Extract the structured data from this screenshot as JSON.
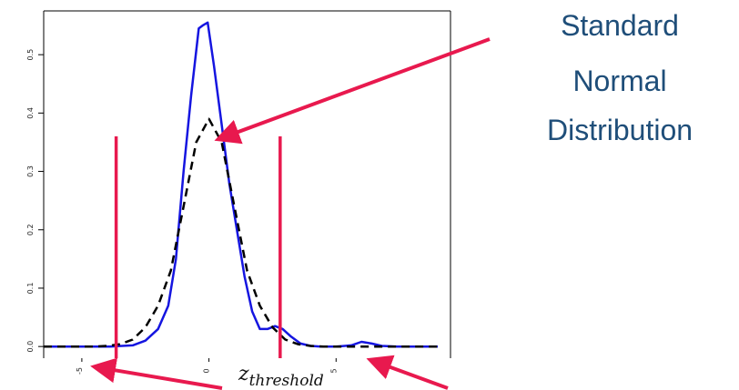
{
  "chart_data": {
    "type": "line",
    "title": "",
    "xlabel": "",
    "ylabel": "",
    "xlim": [
      -6.5,
      9.5
    ],
    "ylim": [
      -0.02,
      0.575
    ],
    "x_ticks": [
      {
        "value": -5,
        "label": "-5"
      },
      {
        "value": 0,
        "label": "0"
      },
      {
        "value": 5,
        "label": "5"
      }
    ],
    "y_ticks": [
      {
        "value": 0.0,
        "label": "0.0"
      },
      {
        "value": 0.1,
        "label": "0.1"
      },
      {
        "value": 0.2,
        "label": "0.2"
      },
      {
        "value": 0.3,
        "label": "0.3"
      },
      {
        "value": 0.4,
        "label": "0.4"
      },
      {
        "value": 0.5,
        "label": "0.5"
      }
    ],
    "series": [
      {
        "style": "solid",
        "color": "#1515e0",
        "x": [
          -6.5,
          -3.9,
          -3.0,
          -2.5,
          -2.0,
          -1.6,
          -1.3,
          -1.0,
          -0.7,
          -0.4,
          -0.25,
          -0.05,
          0.2,
          0.5,
          0.8,
          1.1,
          1.4,
          1.7,
          2.0,
          2.3,
          2.6,
          2.9,
          3.2,
          3.6,
          4.0,
          4.4,
          5.0,
          5.6,
          6.0,
          6.4,
          6.8,
          7.4,
          8.0,
          9.0
        ],
        "y": [
          0.0,
          0.0,
          0.002,
          0.01,
          0.03,
          0.07,
          0.15,
          0.3,
          0.43,
          0.545,
          0.55,
          0.555,
          0.48,
          0.38,
          0.28,
          0.2,
          0.12,
          0.06,
          0.03,
          0.03,
          0.035,
          0.03,
          0.018,
          0.005,
          0.001,
          0.0,
          0.0,
          0.002,
          0.008,
          0.005,
          0.001,
          0.0,
          0.0,
          0.0
        ]
      },
      {
        "style": "dashed",
        "color": "#000000",
        "x": [
          -6.5,
          -4.5,
          -4.0,
          -3.5,
          -3.0,
          -2.5,
          -2.0,
          -1.5,
          -1.0,
          -0.5,
          0.0,
          0.5,
          1.0,
          1.5,
          2.0,
          2.5,
          3.0,
          3.5,
          4.0,
          4.5,
          5.0,
          6.0,
          7.0,
          9.0
        ],
        "y": [
          0.0,
          0.0,
          0.001,
          0.004,
          0.012,
          0.033,
          0.07,
          0.13,
          0.24,
          0.35,
          0.39,
          0.35,
          0.24,
          0.13,
          0.07,
          0.033,
          0.012,
          0.004,
          0.001,
          0.0,
          0.0,
          0.0,
          0.0,
          0.0
        ]
      }
    ],
    "vlines": [
      {
        "x": -3.65,
        "y_top": 0.36,
        "color": "#e8194e"
      },
      {
        "x": 2.8,
        "y_top": 0.36,
        "color": "#e8194e"
      }
    ]
  },
  "annotations": {
    "curve_label_lines": [
      "Standard",
      "Normal",
      "Distribution"
    ],
    "threshold_label": {
      "main": "z",
      "subscript": "threshold"
    },
    "arrow_color": "#e8194e"
  }
}
